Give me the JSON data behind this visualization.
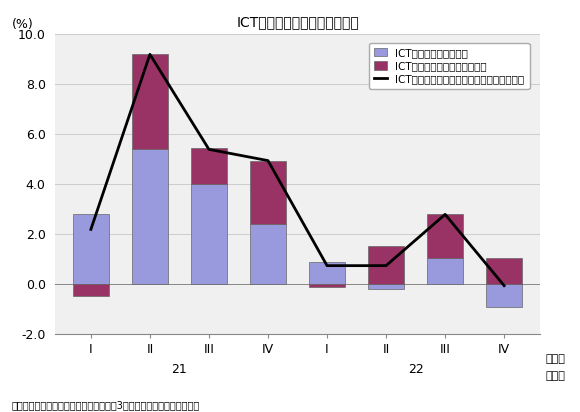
{
  "title": "ICT関連財・サービス総合指標",
  "ylabel": "(%)",
  "xlabel_period": "（期）",
  "xlabel_year": "（年）",
  "source": "（出所）経済産業省「鉱工業指数」「第3次産業活動指数」より作成。",
  "legend": [
    "ICT関連財指標・寄与度",
    "ICT関連サービス指標・寄与度",
    "ICT関連財・サービス総合指標・前年同期比"
  ],
  "categories": [
    "I",
    "II",
    "III",
    "IV",
    "I",
    "II",
    "III",
    "IV"
  ],
  "year_labels": [
    [
      "21",
      1.5
    ],
    [
      "22",
      5.5
    ]
  ],
  "blue_values": [
    2.8,
    5.4,
    4.0,
    2.4,
    0.9,
    -0.2,
    1.05,
    -0.9
  ],
  "red_values": [
    -0.45,
    3.8,
    1.45,
    2.55,
    -0.1,
    1.55,
    1.75,
    1.05
  ],
  "line_values": [
    2.2,
    9.2,
    5.4,
    4.95,
    0.75,
    0.75,
    2.8,
    -0.05
  ],
  "ylim": [
    -2.0,
    10.0
  ],
  "yticks": [
    -2.0,
    0.0,
    2.0,
    4.0,
    6.0,
    8.0,
    10.0
  ],
  "bar_color_blue": "#9999dd",
  "bar_color_red": "#993366",
  "line_color": "#000000",
  "bg_color": "#ffffff",
  "plot_bg_color": "#f0f0f0",
  "title_fontsize": 10,
  "label_fontsize": 9,
  "tick_fontsize": 9,
  "legend_fontsize": 7.5
}
